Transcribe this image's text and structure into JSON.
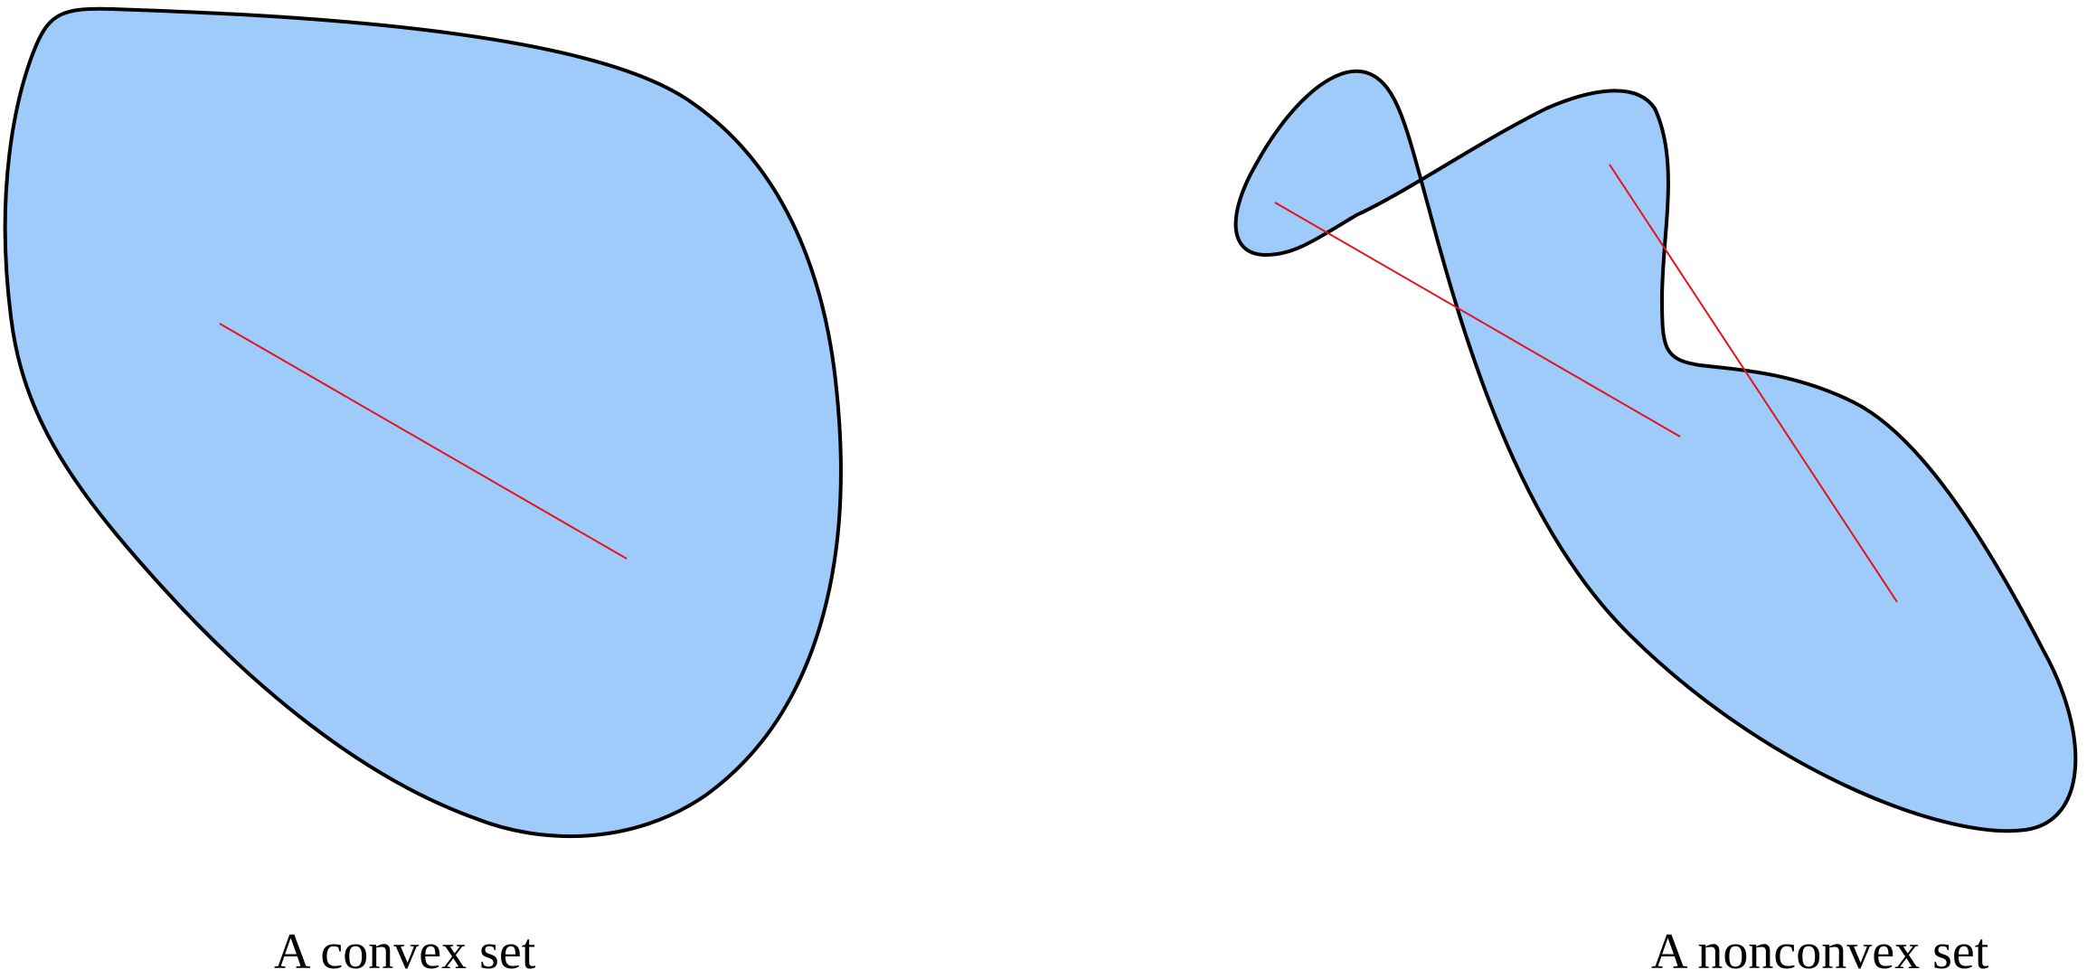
{
  "colors": {
    "background": "#ffffff",
    "set_fill": "#9fcbfa",
    "set_outline": "#000000",
    "segment": "#e2131d"
  },
  "panels": [
    {
      "caption": "A convex set",
      "shape": "convex",
      "segments": 1
    },
    {
      "caption": "A nonconvex set",
      "shape": "nonconvex",
      "segments": 2
    }
  ]
}
